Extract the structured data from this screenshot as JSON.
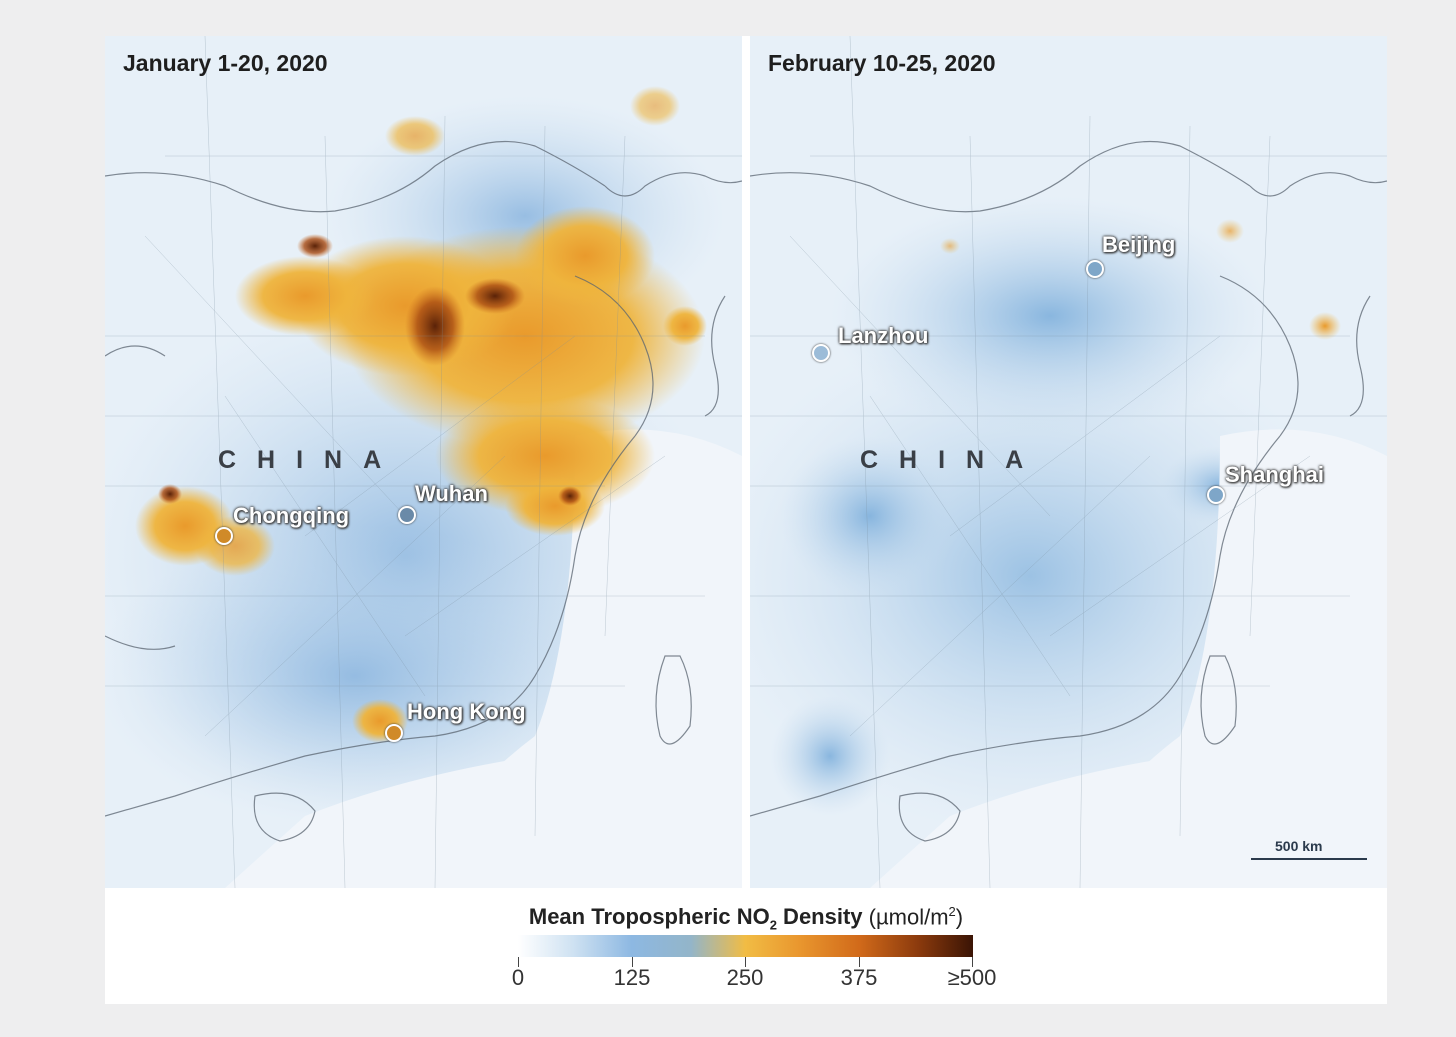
{
  "panels": [
    {
      "title": "January 1-20, 2020",
      "country_label": "CHINA",
      "cities": [
        "Chongqing",
        "Wuhan",
        "Hong Kong"
      ]
    },
    {
      "title": "February 10-25, 2020",
      "country_label": "CHINA",
      "cities": [
        "Beijing",
        "Lanzhou",
        "Shanghai"
      ]
    }
  ],
  "scale_bar": {
    "label": "500 km"
  },
  "legend": {
    "title": "Mean Tropospheric NO",
    "title_subscript": "2",
    "title_rest": " Density",
    "unit_open": " (µmol/m",
    "unit_superscript": "2",
    "unit_close": ")",
    "ticks": [
      "0",
      "125",
      "250",
      "375",
      "≥500"
    ],
    "colors": [
      "#ffffff",
      "#8db8e2",
      "#f1bc44",
      "#d16a1a",
      "#3a1405"
    ]
  }
}
